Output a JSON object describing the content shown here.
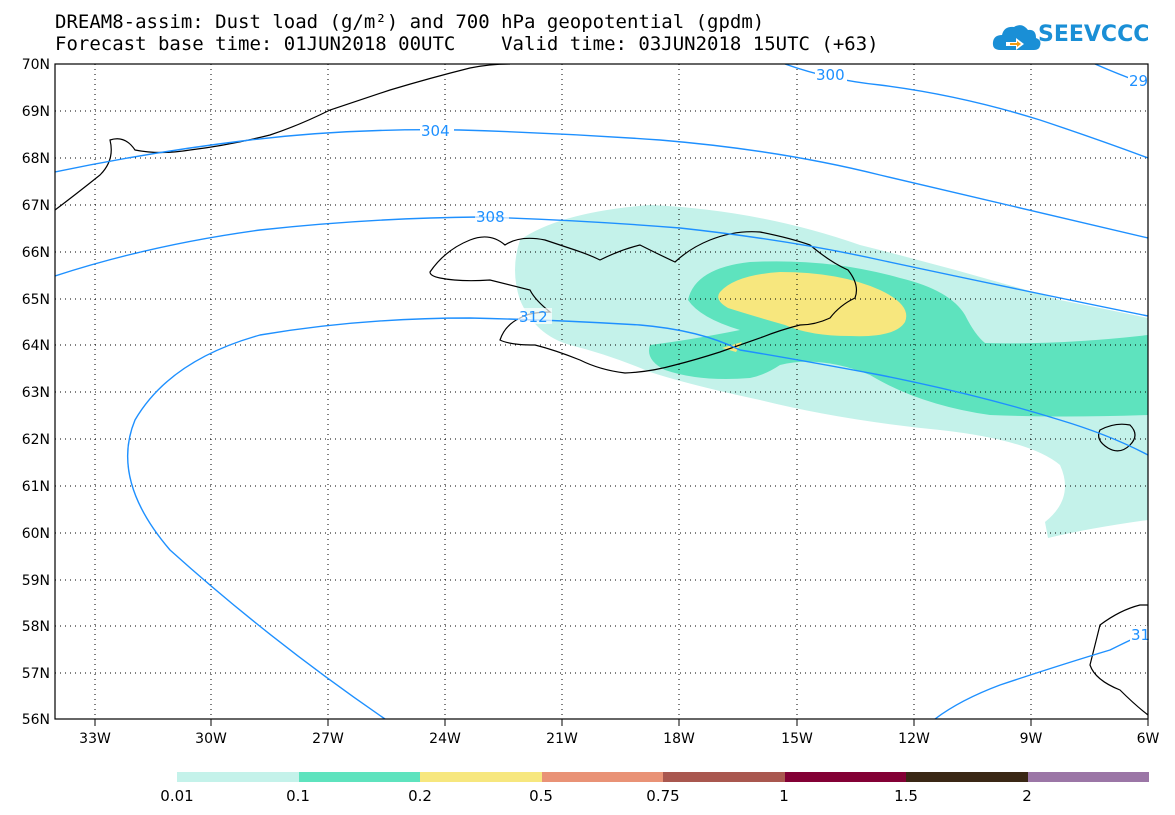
{
  "header": {
    "title_line1": "DREAM8-assim: Dust load (g/m²) and 700 hPa geopotential (gpdm)",
    "title_line2": "Forecast base time: 01JUN2018 00UTC    Valid time: 03JUN2018 15UTC (+63)",
    "logo_text": "SEEVCCC",
    "logo_icon": "cloud-icon"
  },
  "map": {
    "lat_labels": [
      "70N",
      "69N",
      "68N",
      "67N",
      "66N",
      "65N",
      "64N",
      "63N",
      "62N",
      "61N",
      "60N",
      "59N",
      "58N",
      "57N",
      "56N"
    ],
    "lon_labels": [
      "33W",
      "30W",
      "27W",
      "24W",
      "21W",
      "18W",
      "15W",
      "12W",
      "9W",
      "6W"
    ],
    "lat_range": [
      56,
      70
    ],
    "lon_range": [
      -34,
      -6
    ],
    "grid": true,
    "contour_labels": [
      "300",
      "29",
      "304",
      "308",
      "312",
      "31"
    ],
    "contour_color": "#1e90ff"
  },
  "legend": {
    "labels": [
      "0.01",
      "0.1",
      "0.2",
      "0.5",
      "0.75",
      "1",
      "1.5",
      "2"
    ],
    "colors": [
      "#c4f2ea",
      "#5ee3be",
      "#f7e77e",
      "#e99276",
      "#a9574f",
      "#830035",
      "#3a2715",
      "#9b76a6"
    ]
  }
}
